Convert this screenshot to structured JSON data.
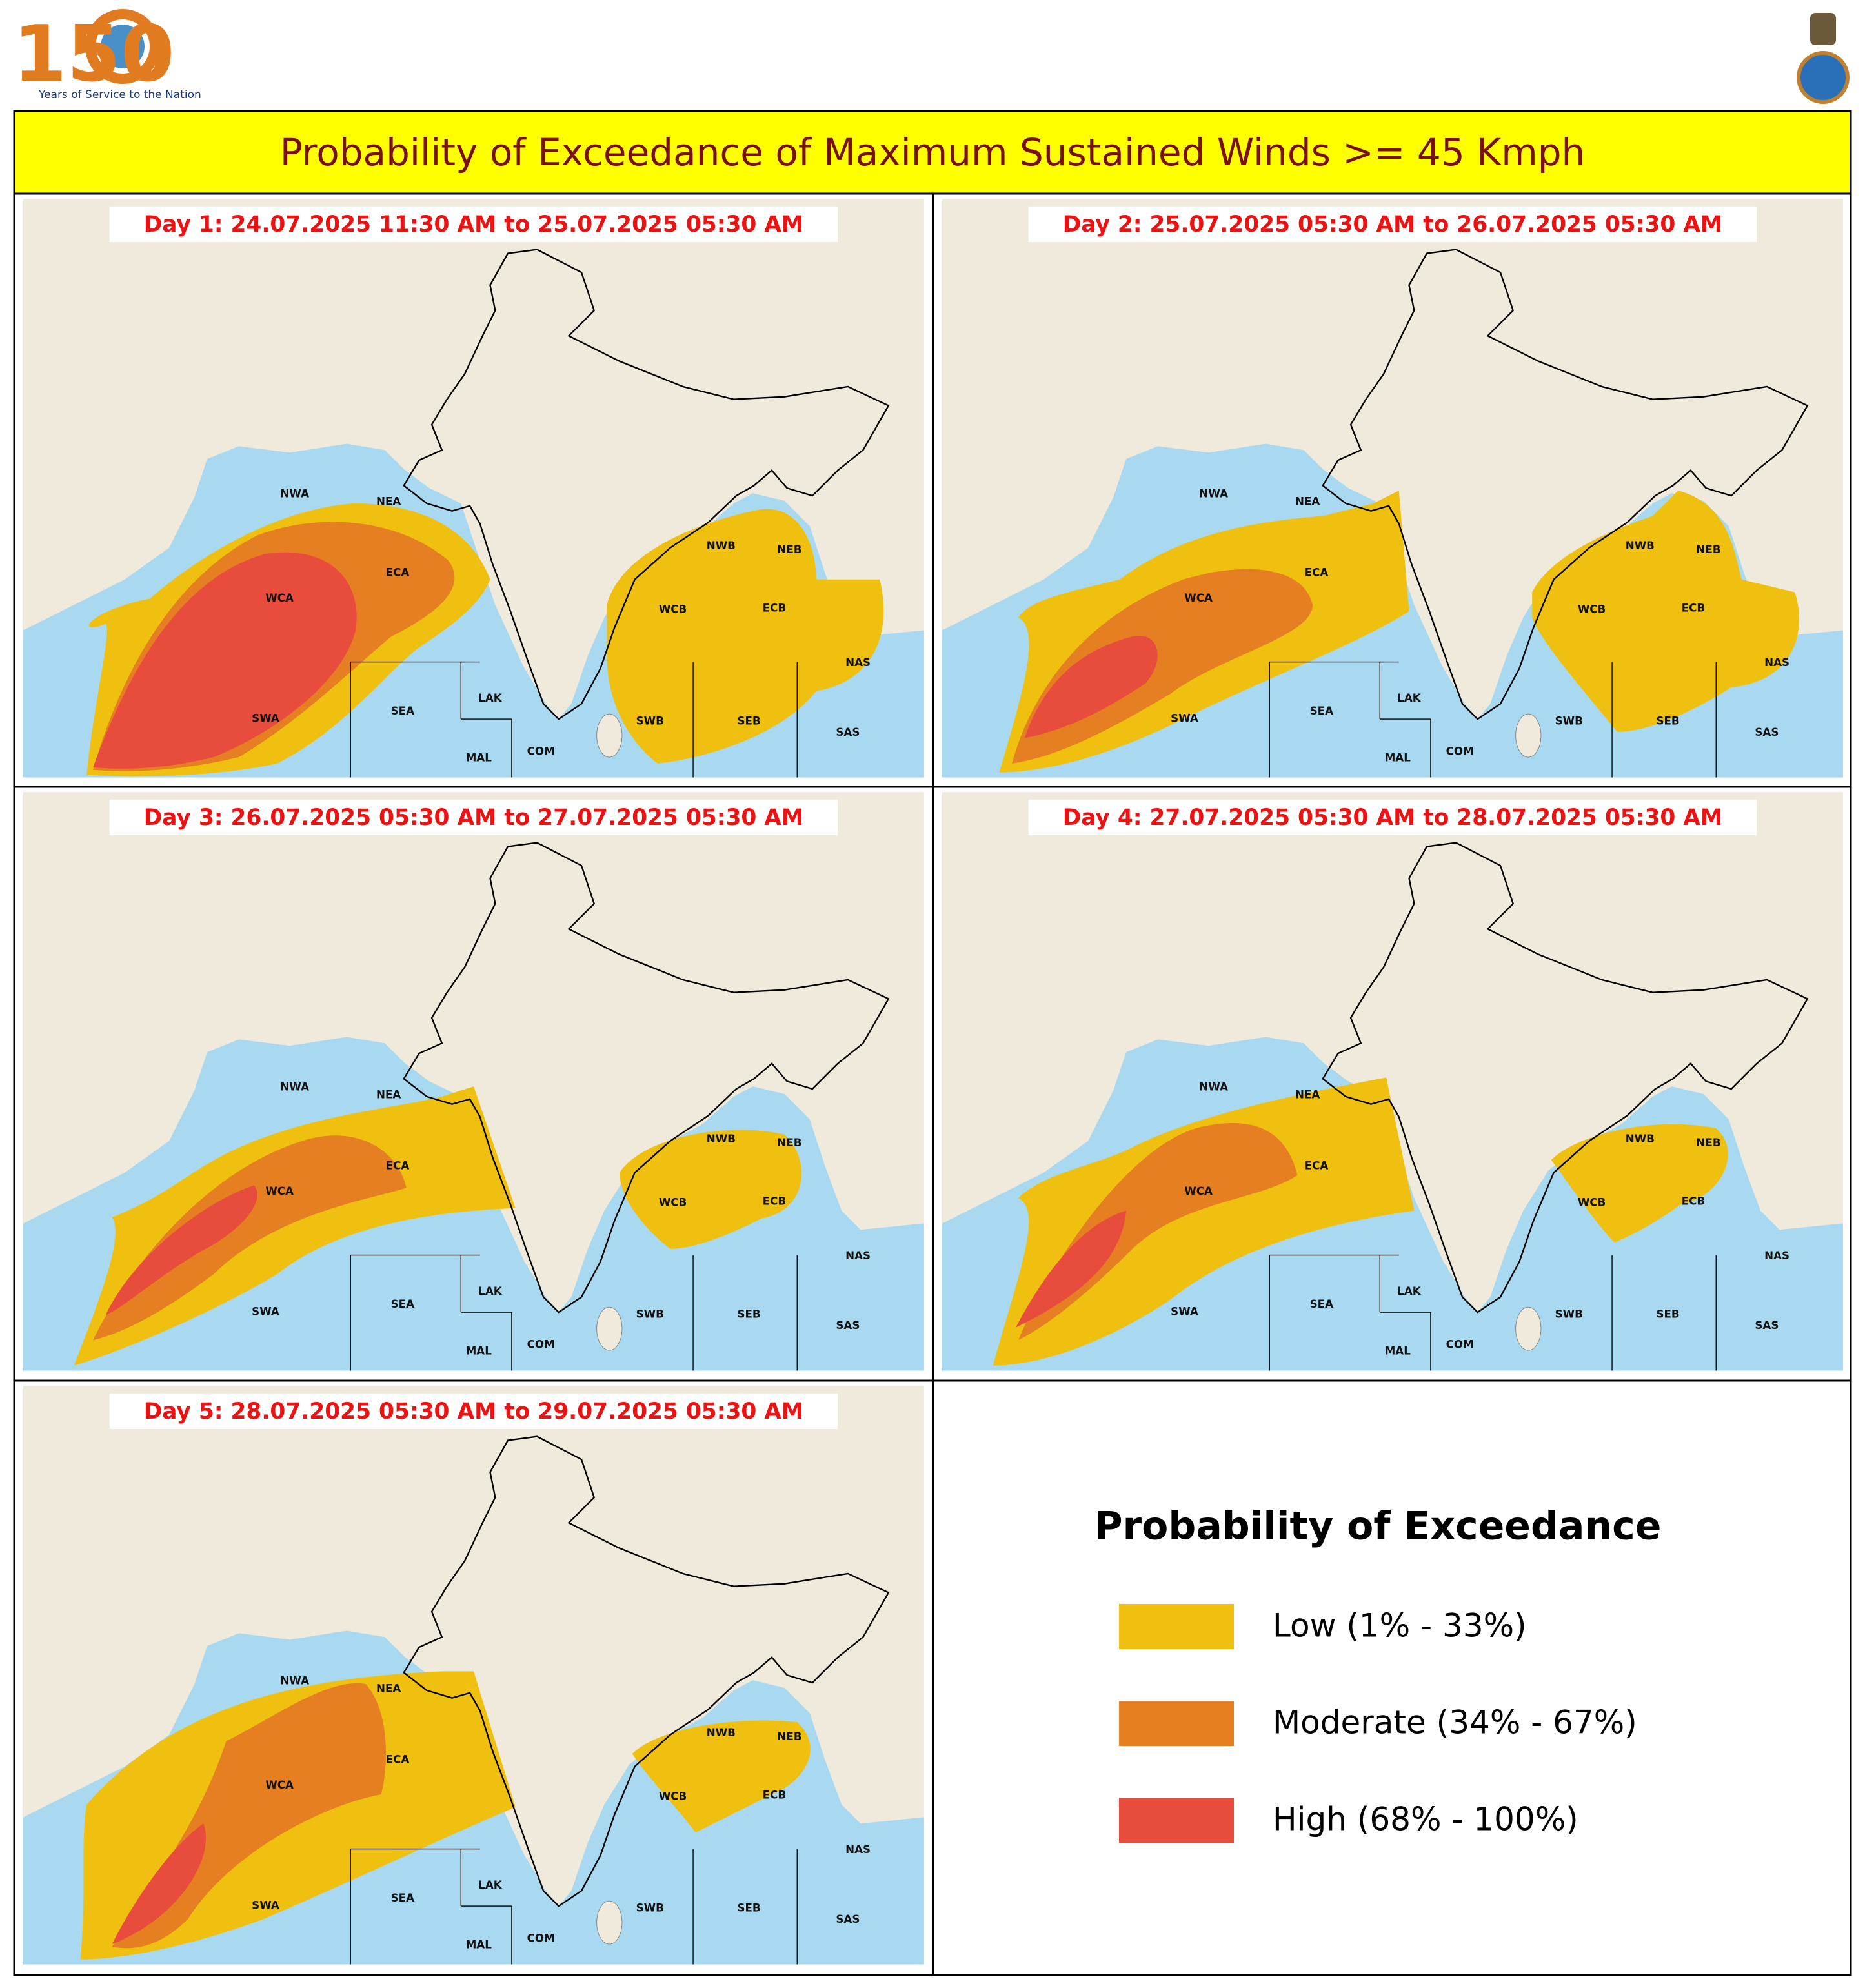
{
  "header": {
    "logo_number": "150",
    "logo_text": "Years of Service to the Nation",
    "title": "Probability of Exceedance of Maximum Sustained Winds >= 45 Kmph"
  },
  "panels": [
    {
      "title": "Day 1: 24.07.2025 11:30 AM to 25.07.2025 05:30 AM"
    },
    {
      "title": "Day 2: 25.07.2025 05:30 AM to 26.07.2025 05:30 AM"
    },
    {
      "title": "Day 3: 26.07.2025 05:30 AM to 27.07.2025 05:30 AM"
    },
    {
      "title": "Day 4: 27.07.2025 05:30 AM to 28.07.2025 05:30 AM"
    },
    {
      "title": "Day 5: 28.07.2025 05:30 AM to 29.07.2025 05:30 AM"
    }
  ],
  "region_labels": [
    "NWA",
    "NEA",
    "ECA",
    "WCA",
    "SWA",
    "SEA",
    "LAK",
    "MAL",
    "COM",
    "NWB",
    "NEB",
    "WCB",
    "ECB",
    "NAS",
    "SWB",
    "SEB",
    "SAS"
  ],
  "legend": {
    "title": "Probability of Exceedance",
    "items": [
      {
        "label": "Low (1% - 33%)",
        "color": "#f0c010"
      },
      {
        "label": "Moderate (34% - 67%)",
        "color": "#e67f22"
      },
      {
        "label": "High (68% - 100%)",
        "color": "#e74c3c"
      }
    ]
  }
}
